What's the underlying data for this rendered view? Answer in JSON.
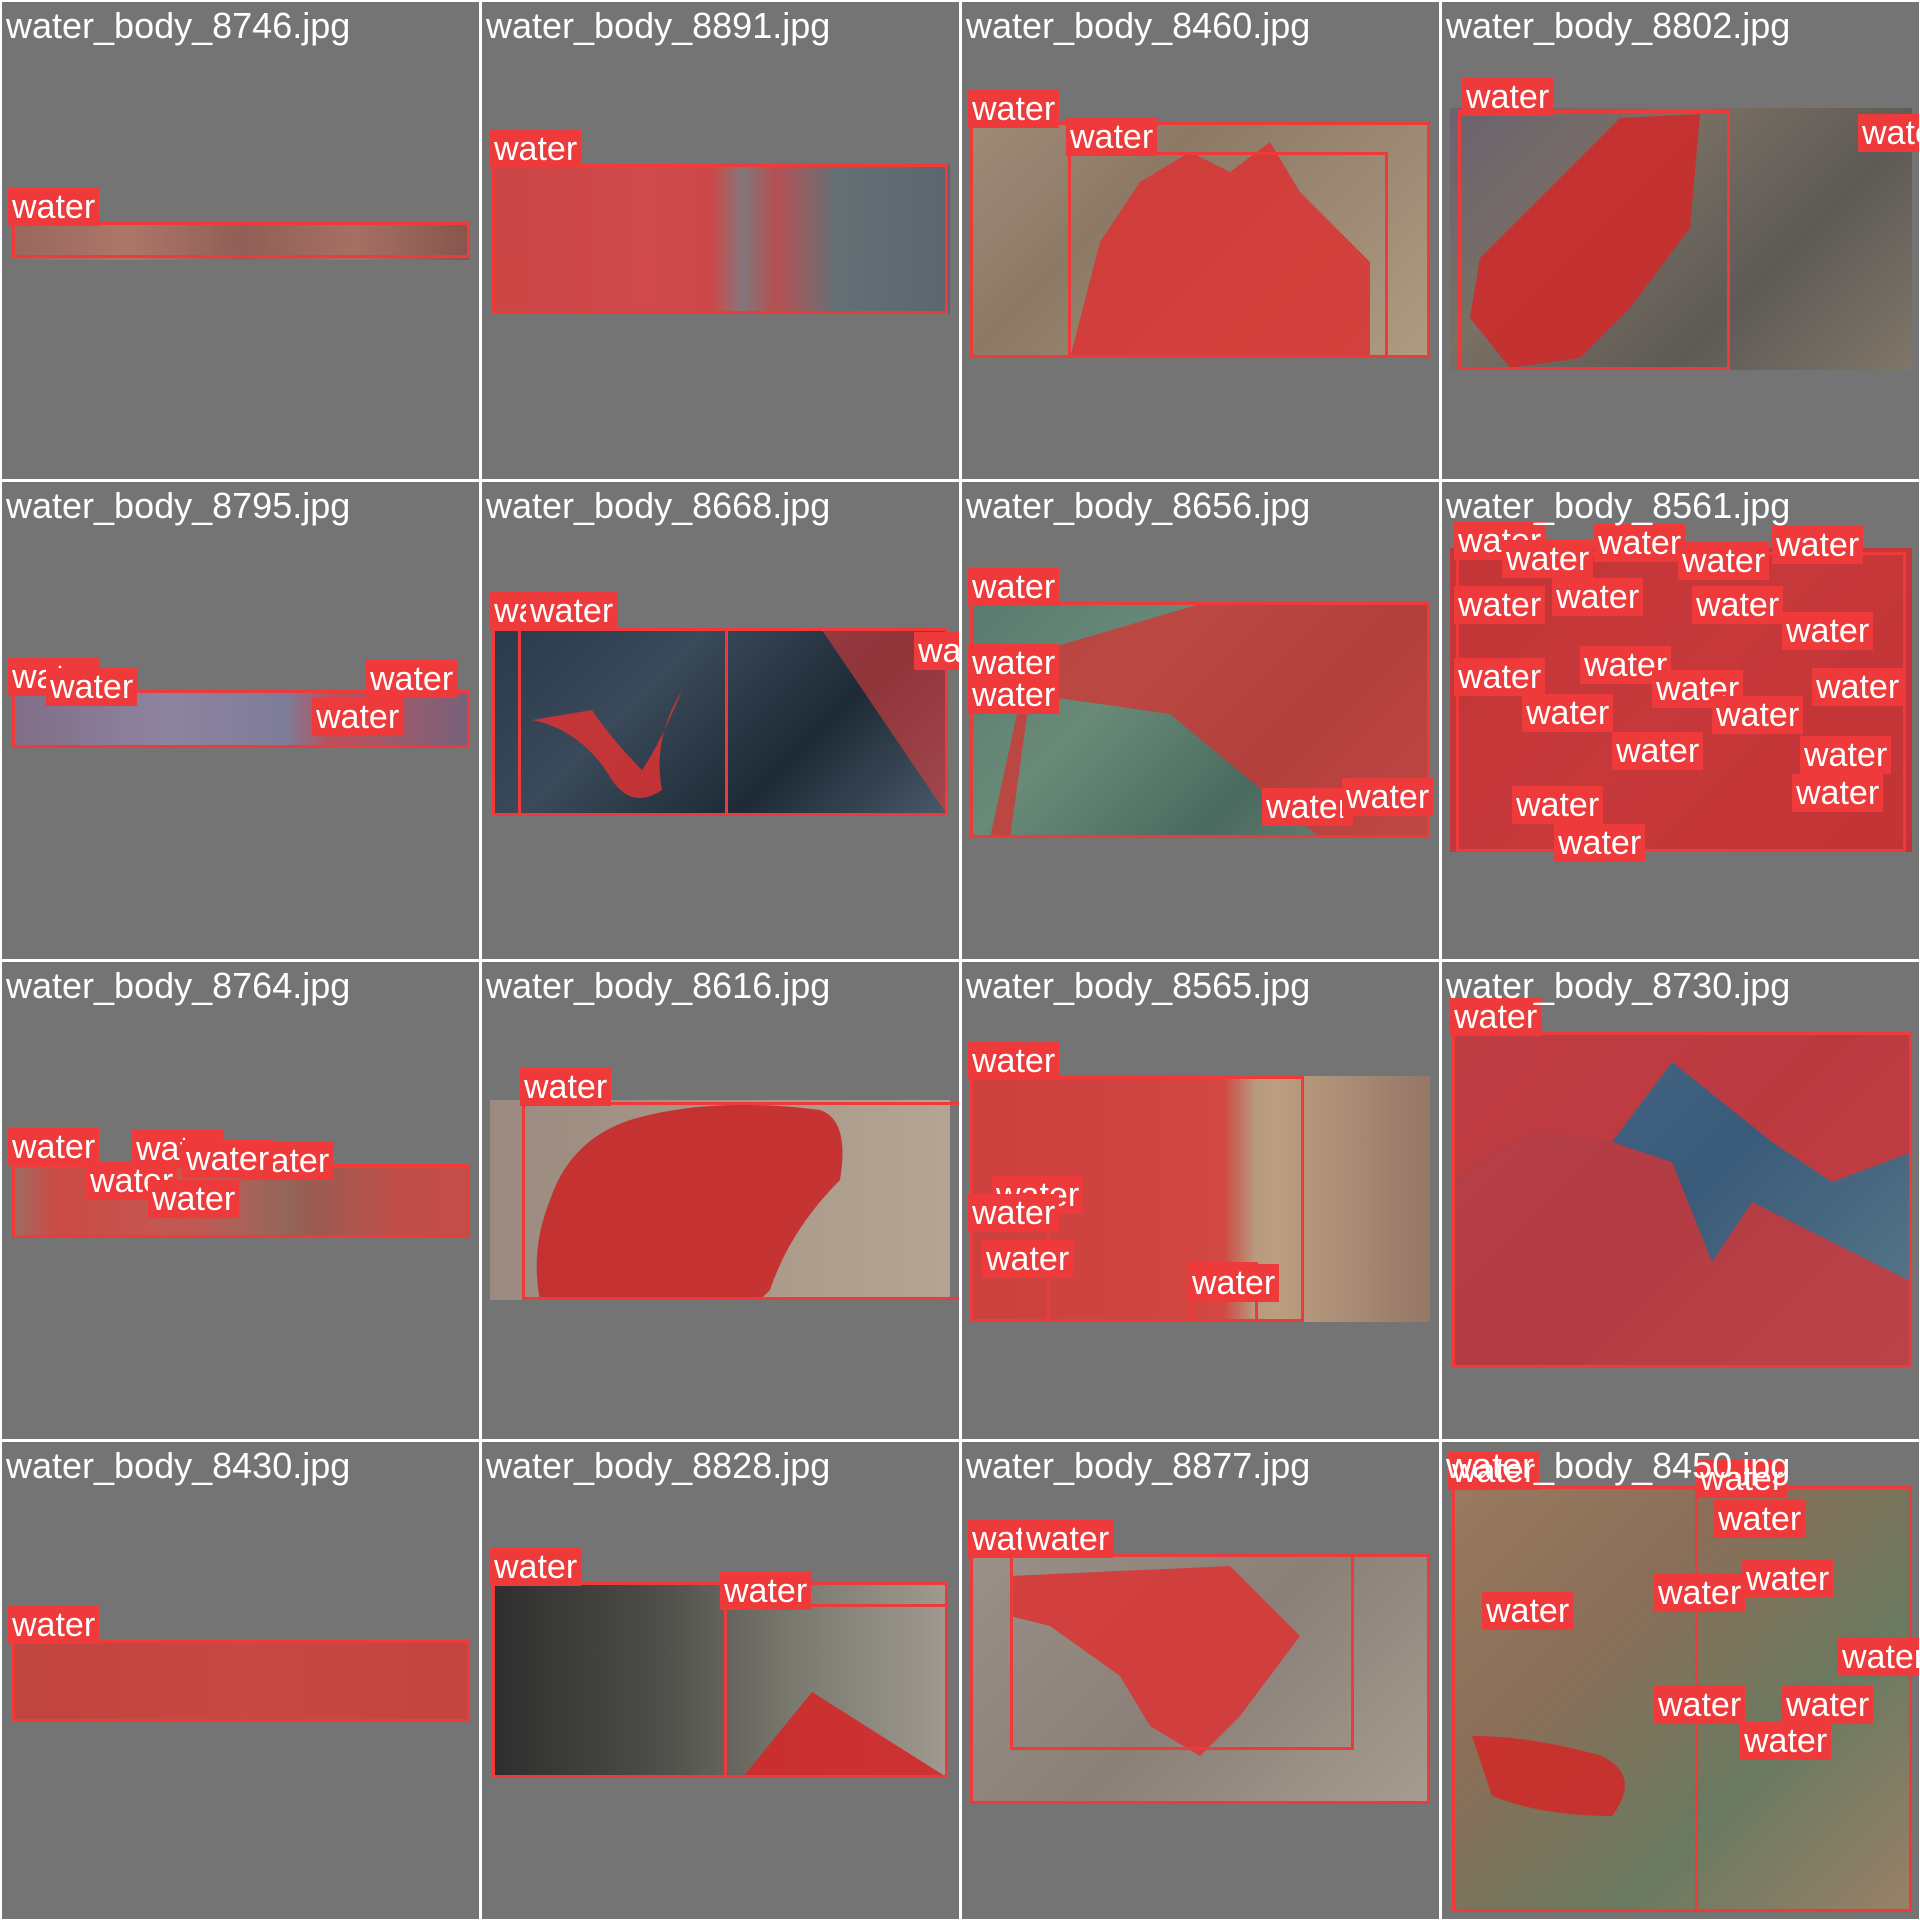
{
  "label": "water",
  "colors": {
    "background": "#747474",
    "annotation": "#ee3a3a",
    "grid_line": "#ffffff"
  },
  "cells": [
    {
      "filename": "water_body_8746.jpg"
    },
    {
      "filename": "water_body_8891.jpg"
    },
    {
      "filename": "water_body_8460.jpg"
    },
    {
      "filename": "water_body_8802.jpg"
    },
    {
      "filename": "water_body_8795.jpg"
    },
    {
      "filename": "water_body_8668.jpg"
    },
    {
      "filename": "water_body_8656.jpg"
    },
    {
      "filename": "water_body_8561.jpg"
    },
    {
      "filename": "water_body_8764.jpg"
    },
    {
      "filename": "water_body_8616.jpg"
    },
    {
      "filename": "water_body_8565.jpg"
    },
    {
      "filename": "water_body_8730.jpg"
    },
    {
      "filename": "water_body_8430.jpg"
    },
    {
      "filename": "water_body_8828.jpg"
    },
    {
      "filename": "water_body_8877.jpg"
    },
    {
      "filename": "water_body_8450.jpg"
    }
  ]
}
